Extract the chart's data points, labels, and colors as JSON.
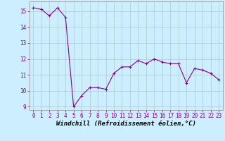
{
  "x": [
    0,
    1,
    2,
    3,
    4,
    5,
    6,
    7,
    8,
    9,
    10,
    11,
    12,
    13,
    14,
    15,
    16,
    17,
    18,
    19,
    20,
    21,
    22,
    23
  ],
  "y": [
    15.2,
    15.1,
    14.7,
    15.2,
    14.6,
    9.0,
    9.7,
    10.2,
    10.2,
    10.1,
    11.1,
    11.5,
    11.5,
    11.9,
    11.7,
    12.0,
    11.8,
    11.7,
    11.7,
    10.5,
    11.4,
    11.3,
    11.1,
    10.7
  ],
  "line_color": "#880088",
  "marker": "+",
  "marker_size": 3,
  "bg_color": "#cceeff",
  "grid_color": "#aacccc",
  "xlabel": "Windchill (Refroidissement éolien,°C)",
  "xlabel_fontsize": 6.5,
  "tick_fontsize": 5.5,
  "ylim": [
    8.8,
    15.6
  ],
  "xlim": [
    -0.5,
    23.5
  ],
  "yticks": [
    9,
    10,
    11,
    12,
    13,
    14,
    15
  ],
  "xticks": [
    0,
    1,
    2,
    3,
    4,
    5,
    6,
    7,
    8,
    9,
    10,
    11,
    12,
    13,
    14,
    15,
    16,
    17,
    18,
    19,
    20,
    21,
    22,
    23
  ]
}
